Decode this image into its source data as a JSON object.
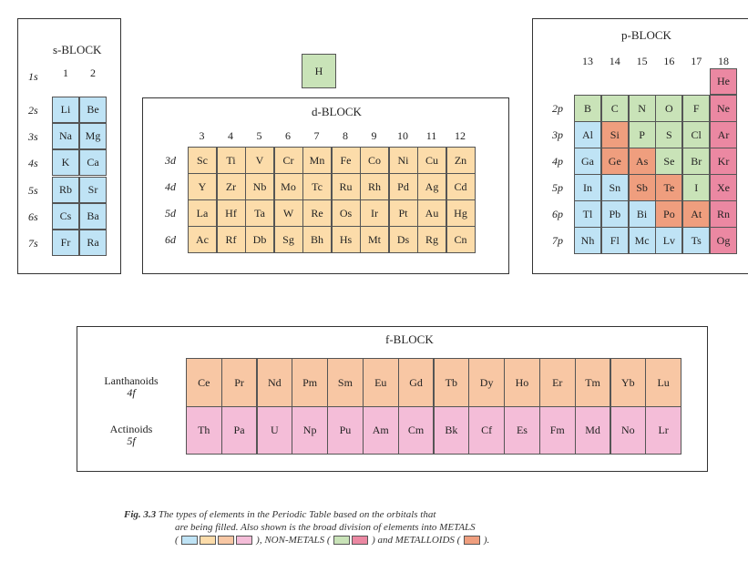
{
  "s_block": {
    "title": "s-BLOCK",
    "groups": [
      "1",
      "2"
    ],
    "rows": [
      {
        "label": "1s",
        "cells": []
      },
      {
        "label": "2s",
        "cells": [
          "Li",
          "Be"
        ]
      },
      {
        "label": "3s",
        "cells": [
          "Na",
          "Mg"
        ]
      },
      {
        "label": "4s",
        "cells": [
          "K",
          "Ca"
        ]
      },
      {
        "label": "5s",
        "cells": [
          "Rb",
          "Sr"
        ]
      },
      {
        "label": "6s",
        "cells": [
          "Cs",
          "Ba"
        ]
      },
      {
        "label": "7s",
        "cells": [
          "Fr",
          "Ra"
        ]
      }
    ]
  },
  "hydrogen": "H",
  "d_block": {
    "title": "d-BLOCK",
    "groups": [
      "3",
      "4",
      "5",
      "6",
      "7",
      "8",
      "9",
      "10",
      "11",
      "12"
    ],
    "rows": [
      {
        "label": "3d",
        "cells": [
          "Sc",
          "Ti",
          "V",
          "Cr",
          "Mn",
          "Fe",
          "Co",
          "Ni",
          "Cu",
          "Zn"
        ]
      },
      {
        "label": "4d",
        "cells": [
          "Y",
          "Zr",
          "Nb",
          "Mo",
          "Tc",
          "Ru",
          "Rh",
          "Pd",
          "Ag",
          "Cd"
        ]
      },
      {
        "label": "5d",
        "cells": [
          "La",
          "Hf",
          "Ta",
          "W",
          "Re",
          "Os",
          "Ir",
          "Pt",
          "Au",
          "Hg"
        ]
      },
      {
        "label": "6d",
        "cells": [
          "Ac",
          "Rf",
          "Db",
          "Sg",
          "Bh",
          "Hs",
          "Mt",
          "Ds",
          "Rg",
          "Cn"
        ]
      }
    ]
  },
  "p_block": {
    "title": "p-BLOCK",
    "groups": [
      "13",
      "14",
      "15",
      "16",
      "17",
      "18"
    ],
    "helium": "He",
    "rows": [
      {
        "label": "2p",
        "cells": [
          "B",
          "C",
          "N",
          "O",
          "F",
          "Ne"
        ],
        "kinds": [
          "green",
          "green",
          "green",
          "green",
          "green",
          "red"
        ]
      },
      {
        "label": "3p",
        "cells": [
          "Al",
          "Si",
          "P",
          "S",
          "Cl",
          "Ar"
        ],
        "kinds": [
          "blue",
          "orange",
          "green",
          "green",
          "green",
          "red"
        ]
      },
      {
        "label": "4p",
        "cells": [
          "Ga",
          "Ge",
          "As",
          "Se",
          "Br",
          "Kr"
        ],
        "kinds": [
          "blue",
          "orange",
          "orange",
          "green",
          "green",
          "red"
        ]
      },
      {
        "label": "5p",
        "cells": [
          "In",
          "Sn",
          "Sb",
          "Te",
          "I",
          "Xe"
        ],
        "kinds": [
          "blue",
          "blue",
          "orange",
          "orange",
          "green",
          "red"
        ]
      },
      {
        "label": "6p",
        "cells": [
          "Tl",
          "Pb",
          "Bi",
          "Po",
          "At",
          "Rn"
        ],
        "kinds": [
          "blue",
          "blue",
          "blue",
          "orange",
          "orange",
          "red"
        ]
      },
      {
        "label": "7p",
        "cells": [
          "Nh",
          "Fl",
          "Mc",
          "Lv",
          "Ts",
          "Og"
        ],
        "kinds": [
          "blue",
          "blue",
          "blue",
          "blue",
          "blue",
          "red"
        ]
      }
    ]
  },
  "f_block": {
    "title": "f-BLOCK",
    "rows": [
      {
        "name": "Lanthanoids",
        "orbital": "4f",
        "cells": [
          "Ce",
          "Pr",
          "Nd",
          "Pm",
          "Sm",
          "Eu",
          "Gd",
          "Tb",
          "Dy",
          "Ho",
          "Er",
          "Tm",
          "Yb",
          "Lu"
        ]
      },
      {
        "name": "Actinoids",
        "orbital": "5f",
        "cells": [
          "Th",
          "Pa",
          "U",
          "Np",
          "Pu",
          "Am",
          "Cm",
          "Bk",
          "Cf",
          "Es",
          "Fm",
          "Md",
          "No",
          "Lr"
        ]
      }
    ]
  },
  "caption": {
    "fig": "Fig. 3.3",
    "line1": "The types of elements in the Periodic Table based on the orbitals that",
    "line2": "are being filled. Also shown is the broad division of elements into METALS",
    "metals_open": "(",
    "metals_close": "), NON-METALS (",
    "nonmetals_close": ") and METALLOIDS (",
    "metalloids_close": ")."
  },
  "colors": {
    "metal_s": "#bfe3f5",
    "metal_d": "#fcdcaa",
    "metal_f4": "#f8c7a4",
    "metal_f5": "#f4bdd8",
    "nonmetal": "#c9e3b8",
    "noble_gas": "#eb88a2",
    "metalloid": "#ef9e7e"
  }
}
